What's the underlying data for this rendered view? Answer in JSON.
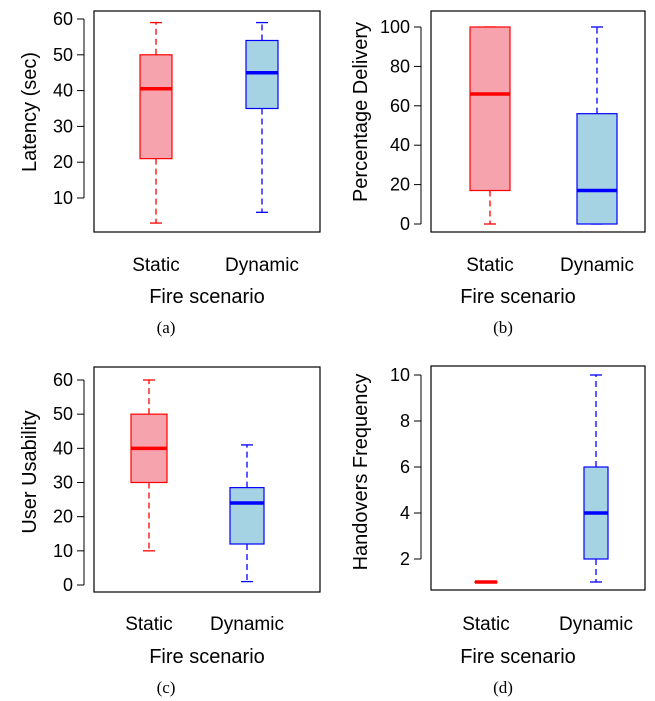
{
  "chart_data": [
    {
      "type": "box",
      "caption": "(a)",
      "xlabel": "Fire scenario",
      "ylabel": "Latency (sec)",
      "ylim": [
        0,
        60
      ],
      "yticks": [
        10,
        20,
        30,
        40,
        50,
        60
      ],
      "categories": [
        "Static",
        "Dynamic"
      ],
      "series": [
        {
          "category": "Static",
          "color": "#ff0000",
          "fill": "#f7a3ad",
          "min": 3,
          "q1": 21,
          "median": 40.5,
          "q3": 50,
          "max": 59
        },
        {
          "category": "Dynamic",
          "color": "#0000ff",
          "fill": "#a6d3e3",
          "min": 6,
          "q1": 35,
          "median": 45,
          "q3": 54,
          "max": 59
        }
      ]
    },
    {
      "type": "box",
      "caption": "(b)",
      "xlabel": "Fire scenario",
      "ylabel": "Percentage Delivery",
      "ylim": [
        0,
        100
      ],
      "yticks": [
        0,
        20,
        40,
        60,
        80,
        100
      ],
      "categories": [
        "Static",
        "Dynamic"
      ],
      "series": [
        {
          "category": "Static",
          "color": "#ff0000",
          "fill": "#f7a3ad",
          "min": 0,
          "q1": 17,
          "median": 66,
          "q3": 100,
          "max": 100
        },
        {
          "category": "Dynamic",
          "color": "#0000ff",
          "fill": "#a6d3e3",
          "min": 0,
          "q1": 0,
          "median": 17,
          "q3": 56,
          "max": 100
        }
      ]
    },
    {
      "type": "box",
      "caption": "(c)",
      "xlabel": "Fire scenario",
      "ylabel": "User Usability",
      "ylim": [
        0,
        60
      ],
      "yticks": [
        0,
        10,
        20,
        30,
        40,
        50,
        60
      ],
      "categories": [
        "Static",
        "Dynamic"
      ],
      "series": [
        {
          "category": "Static",
          "color": "#ff0000",
          "fill": "#f7a3ad",
          "min": 10,
          "q1": 30,
          "median": 40,
          "q3": 50,
          "max": 60
        },
        {
          "category": "Dynamic",
          "color": "#0000ff",
          "fill": "#a6d3e3",
          "min": 1,
          "q1": 12,
          "median": 24,
          "q3": 28.5,
          "max": 41
        }
      ]
    },
    {
      "type": "box",
      "caption": "(d)",
      "xlabel": "Fire scenario",
      "ylabel": "Handovers Frequency",
      "ylim": [
        1,
        10
      ],
      "yticks": [
        2,
        4,
        6,
        8,
        10
      ],
      "categories": [
        "Static",
        "Dynamic"
      ],
      "series": [
        {
          "category": "Static",
          "color": "#ff0000",
          "fill": "#f7a3ad",
          "min": 1,
          "q1": 1,
          "median": 1,
          "q3": 1,
          "max": 1
        },
        {
          "category": "Dynamic",
          "color": "#0000ff",
          "fill": "#a6d3e3",
          "min": 1,
          "q1": 2,
          "median": 4,
          "q3": 6,
          "max": 10
        }
      ]
    }
  ]
}
